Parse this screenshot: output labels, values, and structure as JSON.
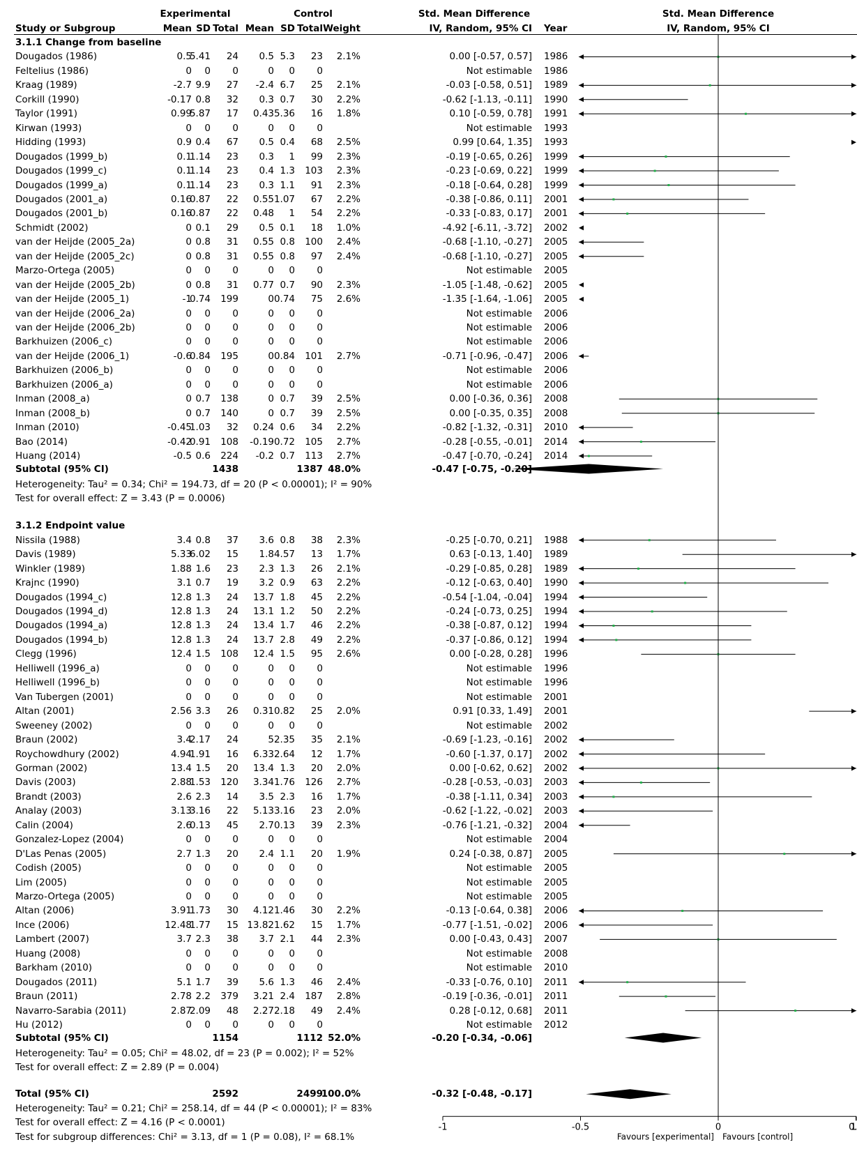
{
  "header": {
    "experimental": "Experimental",
    "control": "Control",
    "smd_left": "Std. Mean Difference",
    "smd_right": "Std. Mean Difference",
    "study": "Study or Subgroup",
    "mean_e": "Mean",
    "sd_e": "SD",
    "total_e": "Total",
    "mean_c": "Mean",
    "sd_c": "SD",
    "total_c": "Total",
    "weight": "Weight",
    "method_left": "IV, Random, 95% CI",
    "year": "Year",
    "method_right": "IV, Random, 95% CI"
  },
  "groups": [
    {
      "title": "3.1.1 Change from baseline",
      "rows": [
        [
          "Dougados (1986)",
          "0.5",
          "5.41",
          "24",
          "0.5",
          "5.3",
          "23",
          "2.1%",
          "0.00 [-0.57, 0.57]",
          "1986"
        ],
        [
          "Feltelius (1986)",
          "0",
          "0",
          "0",
          "0",
          "0",
          "0",
          "",
          "Not estimable",
          "1986"
        ],
        [
          "Kraag (1989)",
          "-2.7",
          "9.9",
          "27",
          "-2.4",
          "6.7",
          "25",
          "2.1%",
          "-0.03 [-0.58, 0.51]",
          "1989"
        ],
        [
          "Corkill (1990)",
          "-0.17",
          "0.8",
          "32",
          "0.3",
          "0.7",
          "30",
          "2.2%",
          "-0.62 [-1.13, -0.11]",
          "1990"
        ],
        [
          "Taylor (1991)",
          "0.99",
          "5.87",
          "17",
          "0.43",
          "5.36",
          "16",
          "1.8%",
          "0.10 [-0.59, 0.78]",
          "1991"
        ],
        [
          "Kirwan (1993)",
          "0",
          "0",
          "0",
          "0",
          "0",
          "0",
          "",
          "Not estimable",
          "1993"
        ],
        [
          "Hidding (1993)",
          "0.9",
          "0.4",
          "67",
          "0.5",
          "0.4",
          "68",
          "2.5%",
          "0.99 [0.64, 1.35]",
          "1993"
        ],
        [
          "Dougados (1999_b)",
          "0.1",
          "1.14",
          "23",
          "0.3",
          "1",
          "99",
          "2.3%",
          "-0.19 [-0.65, 0.26]",
          "1999"
        ],
        [
          "Dougados (1999_c)",
          "0.1",
          "1.14",
          "23",
          "0.4",
          "1.3",
          "103",
          "2.3%",
          "-0.23 [-0.69, 0.22]",
          "1999"
        ],
        [
          "Dougados (1999_a)",
          "0.1",
          "1.14",
          "23",
          "0.3",
          "1.1",
          "91",
          "2.3%",
          "-0.18 [-0.64, 0.28]",
          "1999"
        ],
        [
          "Dougados (2001_a)",
          "0.16",
          "0.87",
          "22",
          "0.55",
          "1.07",
          "67",
          "2.2%",
          "-0.38 [-0.86, 0.11]",
          "2001"
        ],
        [
          "Dougados (2001_b)",
          "0.16",
          "0.87",
          "22",
          "0.48",
          "1",
          "54",
          "2.2%",
          "-0.33 [-0.83, 0.17]",
          "2001"
        ],
        [
          "Schmidt (2002)",
          "0",
          "0.1",
          "29",
          "0.5",
          "0.1",
          "18",
          "1.0%",
          "-4.92 [-6.11, -3.72]",
          "2002"
        ],
        [
          "van der Heijde (2005_2a)",
          "0",
          "0.8",
          "31",
          "0.55",
          "0.8",
          "100",
          "2.4%",
          "-0.68 [-1.10, -0.27]",
          "2005"
        ],
        [
          "van der Heijde (2005_2c)",
          "0",
          "0.8",
          "31",
          "0.55",
          "0.8",
          "97",
          "2.4%",
          "-0.68 [-1.10, -0.27]",
          "2005"
        ],
        [
          "Marzo-Ortega (2005)",
          "0",
          "0",
          "0",
          "0",
          "0",
          "0",
          "",
          "Not estimable",
          "2005"
        ],
        [
          "van der Heijde (2005_2b)",
          "0",
          "0.8",
          "31",
          "0.77",
          "0.7",
          "90",
          "2.3%",
          "-1.05 [-1.48, -0.62]",
          "2005"
        ],
        [
          "van der Heijde (2005_1)",
          "-1",
          "0.74",
          "199",
          "0",
          "0.74",
          "75",
          "2.6%",
          "-1.35 [-1.64, -1.06]",
          "2005"
        ],
        [
          "van der Heijde (2006_2a)",
          "0",
          "0",
          "0",
          "0",
          "0",
          "0",
          "",
          "Not estimable",
          "2006"
        ],
        [
          "van der Heijde (2006_2b)",
          "0",
          "0",
          "0",
          "0",
          "0",
          "0",
          "",
          "Not estimable",
          "2006"
        ],
        [
          "Barkhuizen (2006_c)",
          "0",
          "0",
          "0",
          "0",
          "0",
          "0",
          "",
          "Not estimable",
          "2006"
        ],
        [
          "van der Heijde (2006_1)",
          "-0.6",
          "0.84",
          "195",
          "0",
          "0.84",
          "101",
          "2.7%",
          "-0.71 [-0.96, -0.47]",
          "2006"
        ],
        [
          "Barkhuizen (2006_b)",
          "0",
          "0",
          "0",
          "0",
          "0",
          "0",
          "",
          "Not estimable",
          "2006"
        ],
        [
          "Barkhuizen (2006_a)",
          "0",
          "0",
          "0",
          "0",
          "0",
          "0",
          "",
          "Not estimable",
          "2006"
        ],
        [
          "Inman (2008_a)",
          "0",
          "0.7",
          "138",
          "0",
          "0.7",
          "39",
          "2.5%",
          "0.00 [-0.36, 0.36]",
          "2008"
        ],
        [
          "Inman (2008_b)",
          "0",
          "0.7",
          "140",
          "0",
          "0.7",
          "39",
          "2.5%",
          "0.00 [-0.35, 0.35]",
          "2008"
        ],
        [
          "Inman (2010)",
          "-0.45",
          "1.03",
          "32",
          "0.24",
          "0.6",
          "34",
          "2.2%",
          "-0.82 [-1.32, -0.31]",
          "2010"
        ],
        [
          "Bao (2014)",
          "-0.42",
          "0.91",
          "108",
          "-0.19",
          "0.72",
          "105",
          "2.7%",
          "-0.28 [-0.55, -0.01]",
          "2014"
        ],
        [
          "Huang (2014)",
          "-0.5",
          "0.6",
          "224",
          "-0.2",
          "0.7",
          "113",
          "2.7%",
          "-0.47 [-0.70, -0.24]",
          "2014"
        ]
      ],
      "subtotal": [
        "Subtotal (95% CI)",
        "1438",
        "1387",
        "48.0%",
        "-0.47 [-0.75, -0.20]"
      ],
      "heterogeneity": "Heterogeneity: Tau² = 0.34; Chi² = 194.73, df = 20 (P < 0.00001); I² = 90%",
      "overall": "Test for overall effect: Z = 3.43 (P = 0.0006)"
    },
    {
      "title": "3.1.2 Endpoint value",
      "rows": [
        [
          "Nissila (1988)",
          "3.4",
          "0.8",
          "37",
          "3.6",
          "0.8",
          "38",
          "2.3%",
          "-0.25 [-0.70, 0.21]",
          "1988"
        ],
        [
          "Davis (1989)",
          "5.33",
          "6.02",
          "15",
          "1.8",
          "4.57",
          "13",
          "1.7%",
          "0.63 [-0.13, 1.40]",
          "1989"
        ],
        [
          "Winkler (1989)",
          "1.88",
          "1.6",
          "23",
          "2.3",
          "1.3",
          "26",
          "2.1%",
          "-0.29 [-0.85, 0.28]",
          "1989"
        ],
        [
          "Krajnc (1990)",
          "3.1",
          "0.7",
          "19",
          "3.2",
          "0.9",
          "63",
          "2.2%",
          "-0.12 [-0.63, 0.40]",
          "1990"
        ],
        [
          "Dougados (1994_c)",
          "12.8",
          "1.3",
          "24",
          "13.7",
          "1.8",
          "45",
          "2.2%",
          "-0.54 [-1.04, -0.04]",
          "1994"
        ],
        [
          "Dougados (1994_d)",
          "12.8",
          "1.3",
          "24",
          "13.1",
          "1.2",
          "50",
          "2.2%",
          "-0.24 [-0.73, 0.25]",
          "1994"
        ],
        [
          "Dougados (1994_a)",
          "12.8",
          "1.3",
          "24",
          "13.4",
          "1.7",
          "46",
          "2.2%",
          "-0.38 [-0.87, 0.12]",
          "1994"
        ],
        [
          "Dougados (1994_b)",
          "12.8",
          "1.3",
          "24",
          "13.7",
          "2.8",
          "49",
          "2.2%",
          "-0.37 [-0.86, 0.12]",
          "1994"
        ],
        [
          "Clegg (1996)",
          "12.4",
          "1.5",
          "108",
          "12.4",
          "1.5",
          "95",
          "2.6%",
          "0.00 [-0.28, 0.28]",
          "1996"
        ],
        [
          "Helliwell (1996_a)",
          "0",
          "0",
          "0",
          "0",
          "0",
          "0",
          "",
          "Not estimable",
          "1996"
        ],
        [
          "Helliwell (1996_b)",
          "0",
          "0",
          "0",
          "0",
          "0",
          "0",
          "",
          "Not estimable",
          "1996"
        ],
        [
          "Van Tubergen (2001)",
          "0",
          "0",
          "0",
          "0",
          "0",
          "0",
          "",
          "Not estimable",
          "2001"
        ],
        [
          "Altan (2001)",
          "2.56",
          "3.3",
          "26",
          "0.31",
          "0.82",
          "25",
          "2.0%",
          "0.91 [0.33, 1.49]",
          "2001"
        ],
        [
          "Sweeney (2002)",
          "0",
          "0",
          "0",
          "0",
          "0",
          "0",
          "",
          "Not estimable",
          "2002"
        ],
        [
          "Braun (2002)",
          "3.4",
          "2.17",
          "24",
          "5",
          "2.35",
          "35",
          "2.1%",
          "-0.69 [-1.23, -0.16]",
          "2002"
        ],
        [
          "Roychowdhury (2002)",
          "4.94",
          "1.91",
          "16",
          "6.33",
          "2.64",
          "12",
          "1.7%",
          "-0.60 [-1.37, 0.17]",
          "2002"
        ],
        [
          "Gorman (2002)",
          "13.4",
          "1.5",
          "20",
          "13.4",
          "1.3",
          "20",
          "2.0%",
          "0.00 [-0.62, 0.62]",
          "2002"
        ],
        [
          "Davis (2003)",
          "2.88",
          "1.53",
          "120",
          "3.34",
          "1.76",
          "126",
          "2.7%",
          "-0.28 [-0.53, -0.03]",
          "2003"
        ],
        [
          "Brandt (2003)",
          "2.6",
          "2.3",
          "14",
          "3.5",
          "2.3",
          "16",
          "1.7%",
          "-0.38 [-1.11, 0.34]",
          "2003"
        ],
        [
          "Analay (2003)",
          "3.13",
          "3.16",
          "22",
          "5.13",
          "3.16",
          "23",
          "2.0%",
          "-0.62 [-1.22, -0.02]",
          "2003"
        ],
        [
          "Calin (2004)",
          "2.6",
          "0.13",
          "45",
          "2.7",
          "0.13",
          "39",
          "2.3%",
          "-0.76 [-1.21, -0.32]",
          "2004"
        ],
        [
          "Gonzalez-Lopez (2004)",
          "0",
          "0",
          "0",
          "0",
          "0",
          "0",
          "",
          "Not estimable",
          "2004"
        ],
        [
          "D'Las Penas (2005)",
          "2.7",
          "1.3",
          "20",
          "2.4",
          "1.1",
          "20",
          "1.9%",
          "0.24 [-0.38, 0.87]",
          "2005"
        ],
        [
          "Codish (2005)",
          "0",
          "0",
          "0",
          "0",
          "0",
          "0",
          "",
          "Not estimable",
          "2005"
        ],
        [
          "Lim (2005)",
          "0",
          "0",
          "0",
          "0",
          "0",
          "0",
          "",
          "Not estimable",
          "2005"
        ],
        [
          "Marzo-Ortega (2005)",
          "0",
          "0",
          "0",
          "0",
          "0",
          "0",
          "",
          "Not estimable",
          "2005"
        ],
        [
          "Altan (2006)",
          "3.91",
          "1.73",
          "30",
          "4.12",
          "1.46",
          "30",
          "2.2%",
          "-0.13 [-0.64, 0.38]",
          "2006"
        ],
        [
          "Ince (2006)",
          "12.48",
          "1.77",
          "15",
          "13.82",
          "1.62",
          "15",
          "1.7%",
          "-0.77 [-1.51, -0.02]",
          "2006"
        ],
        [
          "Lambert (2007)",
          "3.7",
          "2.3",
          "38",
          "3.7",
          "2.1",
          "44",
          "2.3%",
          "0.00 [-0.43, 0.43]",
          "2007"
        ],
        [
          "Huang (2008)",
          "0",
          "0",
          "0",
          "0",
          "0",
          "0",
          "",
          "Not estimable",
          "2008"
        ],
        [
          "Barkham (2010)",
          "0",
          "0",
          "0",
          "0",
          "0",
          "0",
          "",
          "Not estimable",
          "2010"
        ],
        [
          "Dougados (2011)",
          "5.1",
          "1.7",
          "39",
          "5.6",
          "1.3",
          "46",
          "2.4%",
          "-0.33 [-0.76, 0.10]",
          "2011"
        ],
        [
          "Braun (2011)",
          "2.78",
          "2.2",
          "379",
          "3.21",
          "2.4",
          "187",
          "2.8%",
          "-0.19 [-0.36, -0.01]",
          "2011"
        ],
        [
          "Navarro-Sarabia (2011)",
          "2.87",
          "2.09",
          "48",
          "2.27",
          "2.18",
          "49",
          "2.4%",
          "0.28 [-0.12, 0.68]",
          "2011"
        ],
        [
          "Hu (2012)",
          "0",
          "0",
          "0",
          "0",
          "0",
          "0",
          "",
          "Not estimable",
          "2012"
        ]
      ],
      "subtotal": [
        "Subtotal (95% CI)",
        "1154",
        "1112",
        "52.0%",
        "-0.20 [-0.34, -0.06]"
      ],
      "heterogeneity": "Heterogeneity: Tau² = 0.05; Chi² = 48.02, df = 23 (P = 0.002); I² = 52%",
      "overall": "Test for overall effect: Z = 2.89 (P = 0.004)"
    }
  ],
  "total": {
    "row": [
      "Total (95% CI)",
      "2592",
      "2499",
      "100.0%",
      "-0.32 [-0.48, -0.17]"
    ],
    "heterogeneity": "Heterogeneity: Tau² = 0.21; Chi² = 258.14, df = 44 (P < 0.00001); I² = 83%",
    "overall": "Test for overall effect: Z = 4.16 (P < 0.0001)",
    "subgroup": "Test for subgroup differences: Chi² = 3.13, df = 1 (P = 0.08), I² = 68.1%"
  },
  "colors": {
    "point": "#22b04a",
    "line": "#000000",
    "diamond": "#000000"
  },
  "chart_data": {
    "type": "forest",
    "xlim": [
      -1,
      1
    ],
    "ticks": [
      "-1",
      "-0.5",
      "0",
      "0.5",
      "1"
    ],
    "xlabel_left": "Favours [experimental]",
    "xlabel_right": "Favours [control]",
    "groups": [
      {
        "studies": [
          [
            0.0,
            -0.57,
            0.57
          ],
          null,
          [
            -0.03,
            -0.58,
            0.51
          ],
          [
            -0.62,
            -1.13,
            -0.11
          ],
          [
            0.1,
            -0.59,
            0.78
          ],
          null,
          [
            0.99,
            0.64,
            1.35
          ],
          [
            -0.19,
            -0.65,
            0.26
          ],
          [
            -0.23,
            -0.69,
            0.22
          ],
          [
            -0.18,
            -0.64,
            0.28
          ],
          [
            -0.38,
            -0.86,
            0.11
          ],
          [
            -0.33,
            -0.83,
            0.17
          ],
          [
            -4.92,
            -6.11,
            -3.72
          ],
          [
            -0.68,
            -1.1,
            -0.27
          ],
          [
            -0.68,
            -1.1,
            -0.27
          ],
          null,
          [
            -1.05,
            -1.48,
            -0.62
          ],
          [
            -1.35,
            -1.64,
            -1.06
          ],
          null,
          null,
          null,
          [
            -0.71,
            -0.96,
            -0.47
          ],
          null,
          null,
          [
            0.0,
            -0.36,
            0.36
          ],
          [
            0.0,
            -0.35,
            0.35
          ],
          [
            -0.82,
            -1.32,
            -0.31
          ],
          [
            -0.28,
            -0.55,
            -0.01
          ],
          [
            -0.47,
            -0.7,
            -0.24
          ]
        ],
        "subtotal": [
          -0.47,
          -0.75,
          -0.2
        ]
      },
      {
        "studies": [
          [
            -0.25,
            -0.7,
            0.21
          ],
          [
            0.63,
            -0.13,
            1.4
          ],
          [
            -0.29,
            -0.85,
            0.28
          ],
          [
            -0.12,
            -0.63,
            0.4
          ],
          [
            -0.54,
            -1.04,
            -0.04
          ],
          [
            -0.24,
            -0.73,
            0.25
          ],
          [
            -0.38,
            -0.87,
            0.12
          ],
          [
            -0.37,
            -0.86,
            0.12
          ],
          [
            0.0,
            -0.28,
            0.28
          ],
          null,
          null,
          null,
          [
            0.91,
            0.33,
            1.49
          ],
          null,
          [
            -0.69,
            -1.23,
            -0.16
          ],
          [
            -0.6,
            -1.37,
            0.17
          ],
          [
            0.0,
            -0.62,
            0.62
          ],
          [
            -0.28,
            -0.53,
            -0.03
          ],
          [
            -0.38,
            -1.11,
            0.34
          ],
          [
            -0.62,
            -1.22,
            -0.02
          ],
          [
            -0.76,
            -1.21,
            -0.32
          ],
          null,
          [
            0.24,
            -0.38,
            0.87
          ],
          null,
          null,
          null,
          [
            -0.13,
            -0.64,
            0.38
          ],
          [
            -0.77,
            -1.51,
            -0.02
          ],
          [
            0.0,
            -0.43,
            0.43
          ],
          null,
          null,
          [
            -0.33,
            -0.76,
            0.1
          ],
          [
            -0.19,
            -0.36,
            -0.01
          ],
          [
            0.28,
            -0.12,
            0.68
          ],
          null
        ],
        "subtotal": [
          -0.2,
          -0.34,
          -0.06
        ]
      }
    ],
    "total": [
      -0.32,
      -0.48,
      -0.17
    ]
  }
}
